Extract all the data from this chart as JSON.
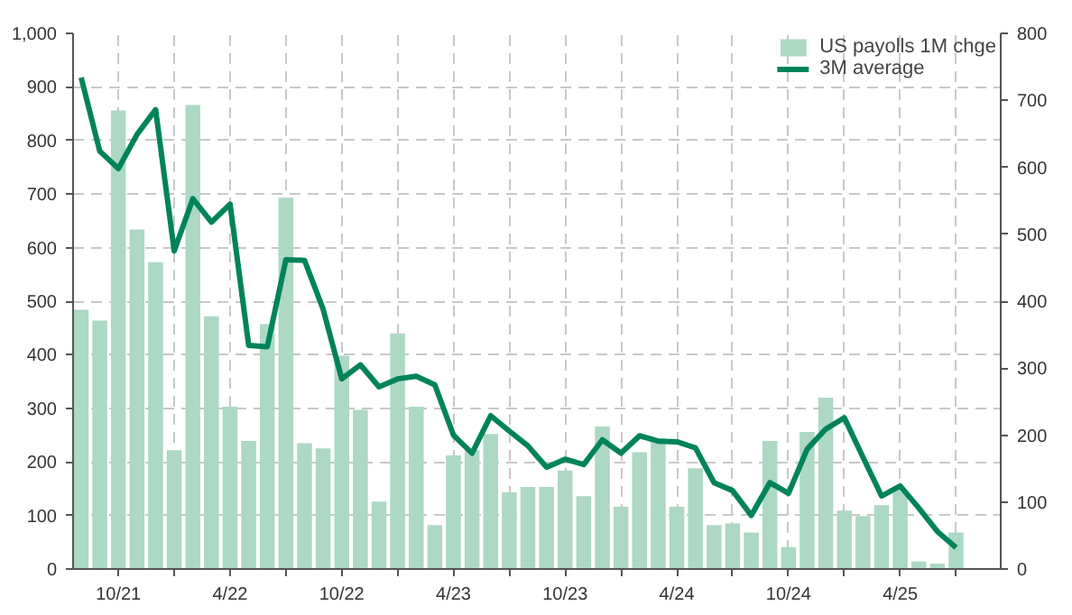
{
  "chart_data": {
    "type": "bar",
    "x": [
      "2021-08",
      "2021-09",
      "2021-10",
      "2021-11",
      "2021-12",
      "2022-01",
      "2022-02",
      "2022-03",
      "2022-04",
      "2022-05",
      "2022-06",
      "2022-07",
      "2022-08",
      "2022-09",
      "2022-10",
      "2022-11",
      "2022-12",
      "2023-01",
      "2023-02",
      "2023-03",
      "2023-04",
      "2023-05",
      "2023-06",
      "2023-07",
      "2023-08",
      "2023-09",
      "2023-10",
      "2023-11",
      "2023-12",
      "2024-01",
      "2024-02",
      "2024-03",
      "2024-04",
      "2024-05",
      "2024-06",
      "2024-07",
      "2024-08",
      "2024-09",
      "2024-10",
      "2024-11",
      "2024-12",
      "2025-01",
      "2025-02",
      "2025-03",
      "2025-04",
      "2025-05",
      "2025-06",
      "2025-07"
    ],
    "series": [
      {
        "name": "US payolls 1M chge",
        "color": "#acd8c4",
        "values": [
          484,
          464,
          856,
          634,
          573,
          222,
          866,
          472,
          303,
          239,
          457,
          693,
          235,
          225,
          398,
          297,
          126,
          440,
          303,
          82,
          212,
          222,
          252,
          143,
          153,
          153,
          184,
          136,
          266,
          116,
          218,
          244,
          116,
          188,
          82,
          85,
          68,
          239,
          41,
          256,
          320,
          109,
          99,
          119,
          147,
          14,
          10,
          68
        ]
      },
      {
        "name": "3M average",
        "type": "line",
        "axis": "y2",
        "color": "#00835a",
        "values": [
          734,
          624,
          598,
          649,
          686,
          475,
          553,
          518,
          545,
          334,
          332,
          462,
          461,
          388,
          284,
          305,
          272,
          284,
          288,
          275,
          200,
          173,
          229,
          206,
          184,
          152,
          164,
          156,
          193,
          173,
          199,
          191,
          190,
          181,
          129,
          117,
          80,
          129,
          113,
          179,
          209,
          226,
          167,
          109,
          124,
          91,
          56,
          32
        ]
      }
    ],
    "xlim": [
      "2021-07-18",
      "2025-09-13"
    ],
    "xticks": [
      {
        "value": "2021-10",
        "label": "10/21"
      },
      {
        "value": "2022-01",
        "label": null
      },
      {
        "value": "2022-04",
        "label": "4/22"
      },
      {
        "value": "2022-07",
        "label": null
      },
      {
        "value": "2022-10",
        "label": "10/22"
      },
      {
        "value": "2023-01",
        "label": null
      },
      {
        "value": "2023-04",
        "label": "4/23"
      },
      {
        "value": "2023-07",
        "label": null
      },
      {
        "value": "2023-10",
        "label": "10/23"
      },
      {
        "value": "2024-01",
        "label": null
      },
      {
        "value": "2024-04",
        "label": "4/24"
      },
      {
        "value": "2024-07",
        "label": null
      },
      {
        "value": "2024-10",
        "label": "10/24"
      },
      {
        "value": "2025-01",
        "label": null
      },
      {
        "value": "2025-04",
        "label": "4/25"
      },
      {
        "value": "2025-07",
        "label": null
      }
    ],
    "ylim": [
      0,
      1000
    ],
    "yticks": [
      0,
      100,
      200,
      300,
      400,
      500,
      600,
      700,
      800,
      900,
      {
        "value": 1000,
        "label": "1,000"
      }
    ],
    "y2lim": [
      0,
      800
    ],
    "y2ticks": [
      0,
      100,
      200,
      300,
      400,
      500,
      600,
      700,
      800
    ],
    "grid": true,
    "legend": "top right",
    "line_style": "solid"
  }
}
